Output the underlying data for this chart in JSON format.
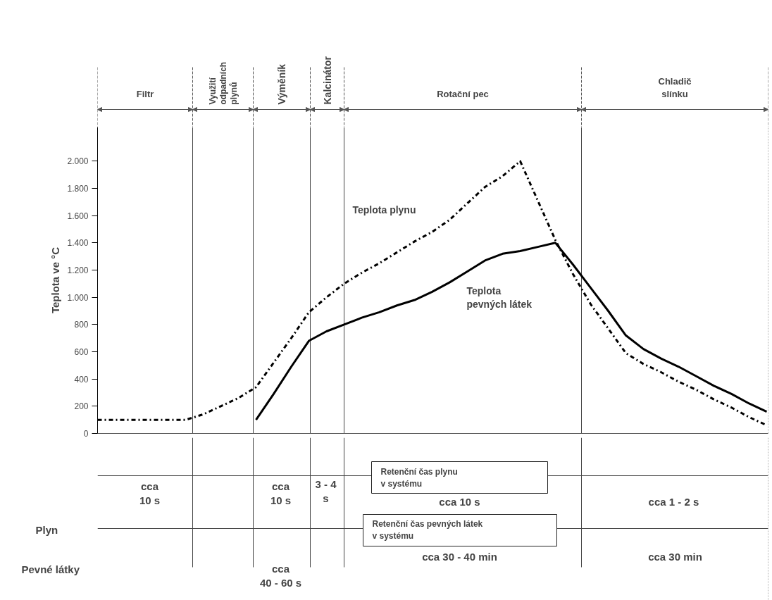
{
  "chart_data": {
    "type": "line",
    "ylabel": "Teplota ve °C",
    "categories": [
      null,
      null,
      null,
      null,
      null,
      null,
      null,
      null,
      null,
      null,
      null,
      null,
      null,
      null,
      null,
      null,
      null,
      null,
      null,
      null,
      null,
      null,
      null,
      null,
      null,
      null,
      null,
      null,
      null,
      null,
      null,
      null,
      null,
      null,
      null,
      null,
      null,
      null,
      null
    ],
    "series": [
      {
        "name": "Teplota plynu",
        "color": "#000000",
        "line_style": "dashdot",
        "values": [
          100,
          100,
          100,
          100,
          100,
          100,
          140,
          200,
          260,
          340,
          520,
          700,
          890,
          1000,
          1100,
          1180,
          1250,
          1330,
          1410,
          1480,
          1570,
          1690,
          1810,
          1890,
          2000,
          1710,
          1420,
          1170,
          950,
          770,
          590,
          510,
          450,
          380,
          320,
          250,
          190,
          120,
          60
        ]
      },
      {
        "name": "Teplota pevných látek",
        "color": "#000000",
        "line_style": "solid",
        "values": [
          null,
          null,
          null,
          null,
          null,
          null,
          null,
          null,
          null,
          100,
          290,
          490,
          680,
          750,
          800,
          850,
          890,
          940,
          980,
          1040,
          1110,
          1190,
          1270,
          1320,
          1340,
          1370,
          1400,
          1240,
          1070,
          900,
          720,
          620,
          550,
          490,
          420,
          350,
          290,
          220,
          160
        ]
      }
    ],
    "ylim": [
      0,
      2250
    ],
    "yticks": [
      0,
      200,
      400,
      600,
      800,
      {
        "value": 1000,
        "label": "1.000"
      },
      {
        "value": 1200,
        "label": "1.200"
      },
      {
        "value": 1400,
        "label": "1.400"
      },
      {
        "value": 1600,
        "label": "1.600"
      },
      {
        "value": 1800,
        "label": "1.800"
      },
      {
        "value": 2000,
        "label": "2.000"
      }
    ],
    "tick_labels": "y",
    "grid": false,
    "annotations": [
      "Filtr",
      "Využití odpadních plynů",
      "Výměník",
      "Kalcinátor",
      "Rotační pec",
      "Chladič slínku",
      "Retenční čas plynu\nv systému",
      "Retenční čas pevných látek\nv systému",
      "cca\n10 s",
      "cca\n10 s",
      "3 - 4\ns",
      "cca 10 s",
      "cca  1 - 2 s",
      "Plyn",
      "Pevné látky",
      "cca\n40 - 60 s",
      "cca 30 - 40 min",
      "cca 30 min"
    ]
  }
}
